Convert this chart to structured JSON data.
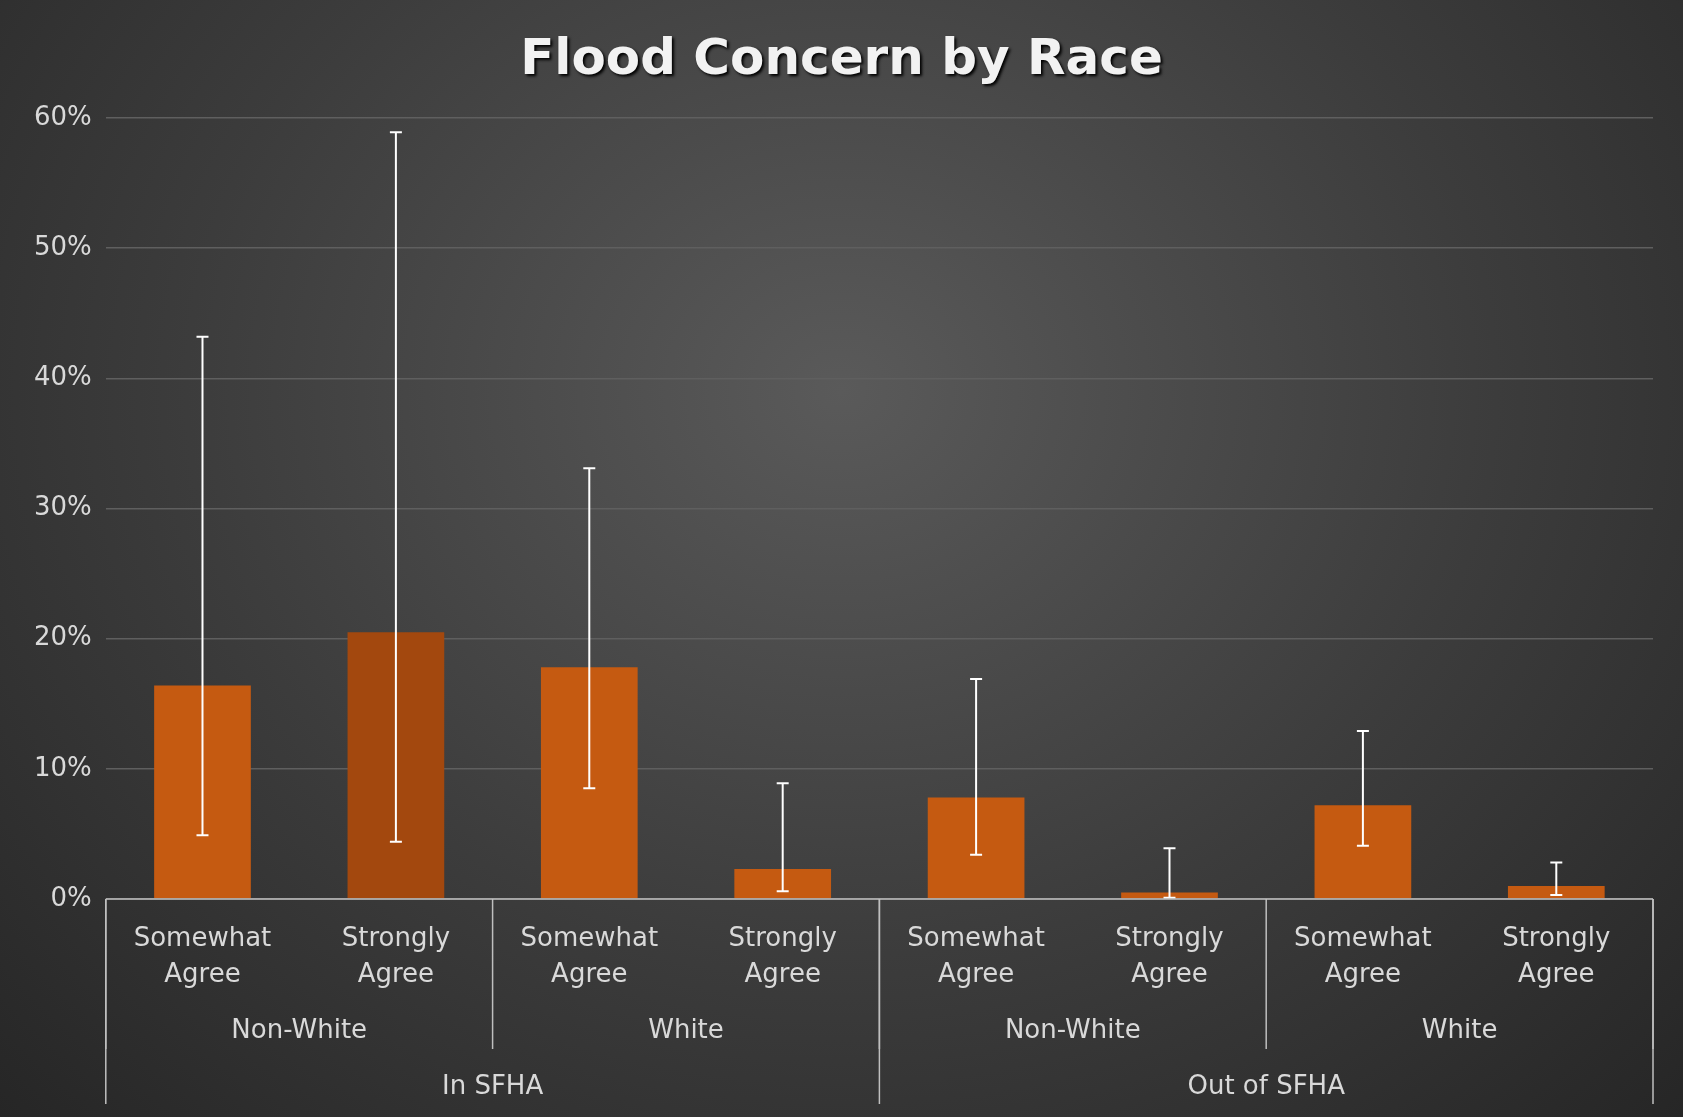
{
  "chart_data": {
    "type": "bar",
    "title": "Flood Concern by Race",
    "categories": [
      "Somewhat Agree",
      "Strongly Agree",
      "Somewhat Agree",
      "Strongly Agree",
      "Somewhat Agree",
      "Strongly Agree",
      "Somewhat Agree",
      "Strongly Agree"
    ],
    "values": [
      16.4,
      20.5,
      17.8,
      2.3,
      7.8,
      0.5,
      7.2,
      1.0
    ],
    "colors": [
      "#c55a11",
      "#a3480e",
      "#c55a11",
      "#c55a11",
      "#c55a11",
      "#c55a11",
      "#c55a11",
      "#c55a11"
    ],
    "errors": [
      [
        4.9,
        43.2
      ],
      [
        4.4,
        58.9
      ],
      [
        8.5,
        33.1
      ],
      [
        0.6,
        8.9
      ],
      [
        3.4,
        16.9
      ],
      [
        0.1,
        3.9
      ],
      [
        4.1,
        12.9
      ],
      [
        0.3,
        2.8
      ]
    ],
    "ylim": [
      0,
      60
    ],
    "yticks": [
      {
        "value": 0,
        "label": "0%"
      },
      {
        "value": 10,
        "label": "10%"
      },
      {
        "value": 20,
        "label": "20%"
      },
      {
        "value": 30,
        "label": "30%"
      },
      {
        "value": 40,
        "label": "40%"
      },
      {
        "value": 50,
        "label": "50%"
      },
      {
        "value": 60,
        "label": "60%"
      }
    ],
    "grid": "y",
    "legend": false,
    "annotations": [
      "Non-White",
      "White",
      "Non-White",
      "White",
      "In SFHA",
      "Out of SFHA"
    ]
  }
}
